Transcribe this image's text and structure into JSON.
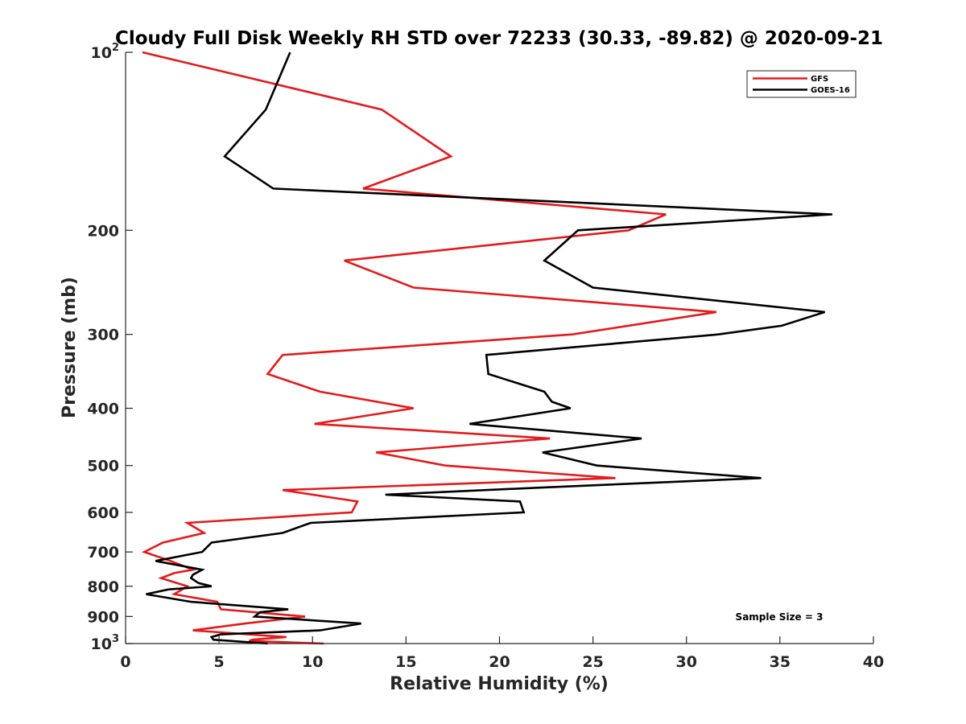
{
  "chart_data": {
    "type": "line",
    "title": "Cloudy Full Disk Weekly RH STD over 72233 (30.33, -89.82) @ 2020-09-21",
    "xlabel": "Relative Humidity (%)",
    "ylabel": "Pressure (mb)",
    "xlim": [
      0,
      40
    ],
    "ylim": [
      100,
      1000
    ],
    "yscale": "log",
    "y_reversed": true,
    "grid": false,
    "x_ticks": [
      0,
      5,
      10,
      15,
      20,
      25,
      30,
      35,
      40
    ],
    "x_tick_labels": [
      "0",
      "5",
      "10",
      "15",
      "20",
      "25",
      "30",
      "35",
      "40"
    ],
    "y_ticks": [
      100,
      200,
      300,
      400,
      500,
      600,
      700,
      800,
      900,
      1000
    ],
    "y_tick_labels": [
      {
        "base": "10",
        "exp": "2"
      },
      {
        "base": "200",
        "exp": ""
      },
      {
        "base": "300",
        "exp": ""
      },
      {
        "base": "400",
        "exp": ""
      },
      {
        "base": "500",
        "exp": ""
      },
      {
        "base": "600",
        "exp": ""
      },
      {
        "base": "700",
        "exp": ""
      },
      {
        "base": "800",
        "exp": ""
      },
      {
        "base": "900",
        "exp": ""
      },
      {
        "base": "10",
        "exp": "3"
      }
    ],
    "legend_position": "top-right",
    "annotation": "Sample Size = 3",
    "series": [
      {
        "name": "GFS",
        "color": "#e41a1c",
        "points": [
          [
            0.9,
            100
          ],
          [
            13.7,
            125
          ],
          [
            17.4,
            150
          ],
          [
            12.7,
            170
          ],
          [
            28.9,
            188
          ],
          [
            26.9,
            200
          ],
          [
            11.7,
            225
          ],
          [
            15.4,
            250
          ],
          [
            31.6,
            275
          ],
          [
            23.9,
            300
          ],
          [
            8.4,
            325
          ],
          [
            7.6,
            350
          ],
          [
            10.4,
            375
          ],
          [
            15.4,
            400
          ],
          [
            10.1,
            425
          ],
          [
            22.7,
            450
          ],
          [
            13.4,
            475
          ],
          [
            17.1,
            500
          ],
          [
            26.2,
            525
          ],
          [
            8.4,
            550
          ],
          [
            12.4,
            575
          ],
          [
            12.1,
            600
          ],
          [
            3.3,
            625
          ],
          [
            4.2,
            650
          ],
          [
            2.0,
            675
          ],
          [
            1.0,
            700
          ],
          [
            2.4,
            725
          ],
          [
            3.6,
            750
          ],
          [
            2.6,
            760
          ],
          [
            1.9,
            775
          ],
          [
            3.3,
            800
          ],
          [
            2.6,
            825
          ],
          [
            4.9,
            850
          ],
          [
            5.1,
            875
          ],
          [
            9.6,
            900
          ],
          [
            6.4,
            925
          ],
          [
            3.6,
            950
          ],
          [
            8.6,
            975
          ],
          [
            6.8,
            985
          ],
          [
            6.6,
            990
          ],
          [
            10.6,
            1000
          ]
        ]
      },
      {
        "name": "GOES-16",
        "color": "#000000",
        "points": [
          [
            8.8,
            100
          ],
          [
            7.5,
            125
          ],
          [
            5.3,
            150
          ],
          [
            7.9,
            170
          ],
          [
            37.8,
            188
          ],
          [
            24.2,
            200
          ],
          [
            22.4,
            225
          ],
          [
            25.0,
            250
          ],
          [
            37.4,
            275
          ],
          [
            35.1,
            290
          ],
          [
            31.7,
            300
          ],
          [
            19.3,
            325
          ],
          [
            19.4,
            350
          ],
          [
            22.4,
            375
          ],
          [
            22.8,
            390
          ],
          [
            23.8,
            400
          ],
          [
            18.4,
            425
          ],
          [
            27.6,
            450
          ],
          [
            22.3,
            475
          ],
          [
            25.2,
            500
          ],
          [
            34.0,
            525
          ],
          [
            22.0,
            545
          ],
          [
            13.9,
            560
          ],
          [
            21.1,
            575
          ],
          [
            21.3,
            600
          ],
          [
            9.9,
            625
          ],
          [
            8.4,
            650
          ],
          [
            4.6,
            675
          ],
          [
            4.1,
            700
          ],
          [
            1.6,
            725
          ],
          [
            4.1,
            750
          ],
          [
            3.6,
            765
          ],
          [
            3.5,
            775
          ],
          [
            3.9,
            790
          ],
          [
            4.6,
            800
          ],
          [
            2.3,
            810
          ],
          [
            1.1,
            825
          ],
          [
            3.5,
            850
          ],
          [
            8.7,
            875
          ],
          [
            7.2,
            885
          ],
          [
            6.9,
            900
          ],
          [
            12.6,
            925
          ],
          [
            10.4,
            950
          ],
          [
            5.1,
            965
          ],
          [
            4.6,
            975
          ],
          [
            4.7,
            985
          ],
          [
            7.6,
            1000
          ]
        ]
      }
    ]
  }
}
